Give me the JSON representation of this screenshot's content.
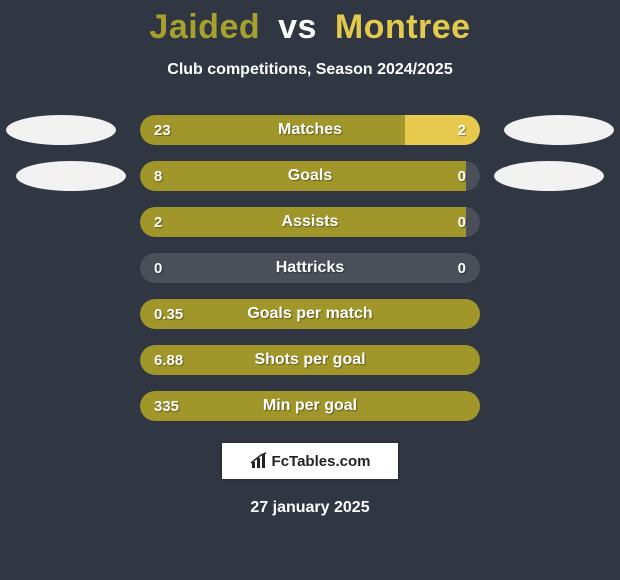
{
  "title": {
    "player1": "Jaided",
    "vs": "vs",
    "player2": "Montree"
  },
  "title_colors": {
    "p1": "#a6a12f",
    "vs": "#ffffff",
    "p2": "#e3c94c"
  },
  "subtitle": "Club competitions, Season 2024/2025",
  "bar_colors": {
    "left": "#a09629",
    "right": "#e7c94e",
    "zero": "#4a4f59"
  },
  "bar_style": {
    "track_width": 340,
    "height": 30,
    "radius": 16,
    "gap": 16,
    "font_size": 16
  },
  "background_color": "#313742",
  "bars": [
    {
      "label": "Matches",
      "left_val": "23",
      "right_val": "2",
      "left_pct": 78,
      "right_pct": 22,
      "left_zero": false,
      "right_zero": false
    },
    {
      "label": "Goals",
      "left_val": "8",
      "right_val": "0",
      "left_pct": 96,
      "right_pct": 4,
      "left_zero": false,
      "right_zero": true
    },
    {
      "label": "Assists",
      "left_val": "2",
      "right_val": "0",
      "left_pct": 96,
      "right_pct": 4,
      "left_zero": false,
      "right_zero": true
    },
    {
      "label": "Hattricks",
      "left_val": "0",
      "right_val": "0",
      "left_pct": 4,
      "right_pct": 4,
      "left_zero": true,
      "right_zero": true
    },
    {
      "label": "Goals per match",
      "left_val": "0.35",
      "right_val": "",
      "left_pct": 100,
      "right_pct": 0,
      "left_zero": false,
      "right_zero": false
    },
    {
      "label": "Shots per goal",
      "left_val": "6.88",
      "right_val": "",
      "left_pct": 100,
      "right_pct": 0,
      "left_zero": false,
      "right_zero": false
    },
    {
      "label": "Min per goal",
      "left_val": "335",
      "right_val": "",
      "left_pct": 100,
      "right_pct": 0,
      "left_zero": false,
      "right_zero": false
    }
  ],
  "brand": "FcTables.com",
  "date": "27 january 2025"
}
